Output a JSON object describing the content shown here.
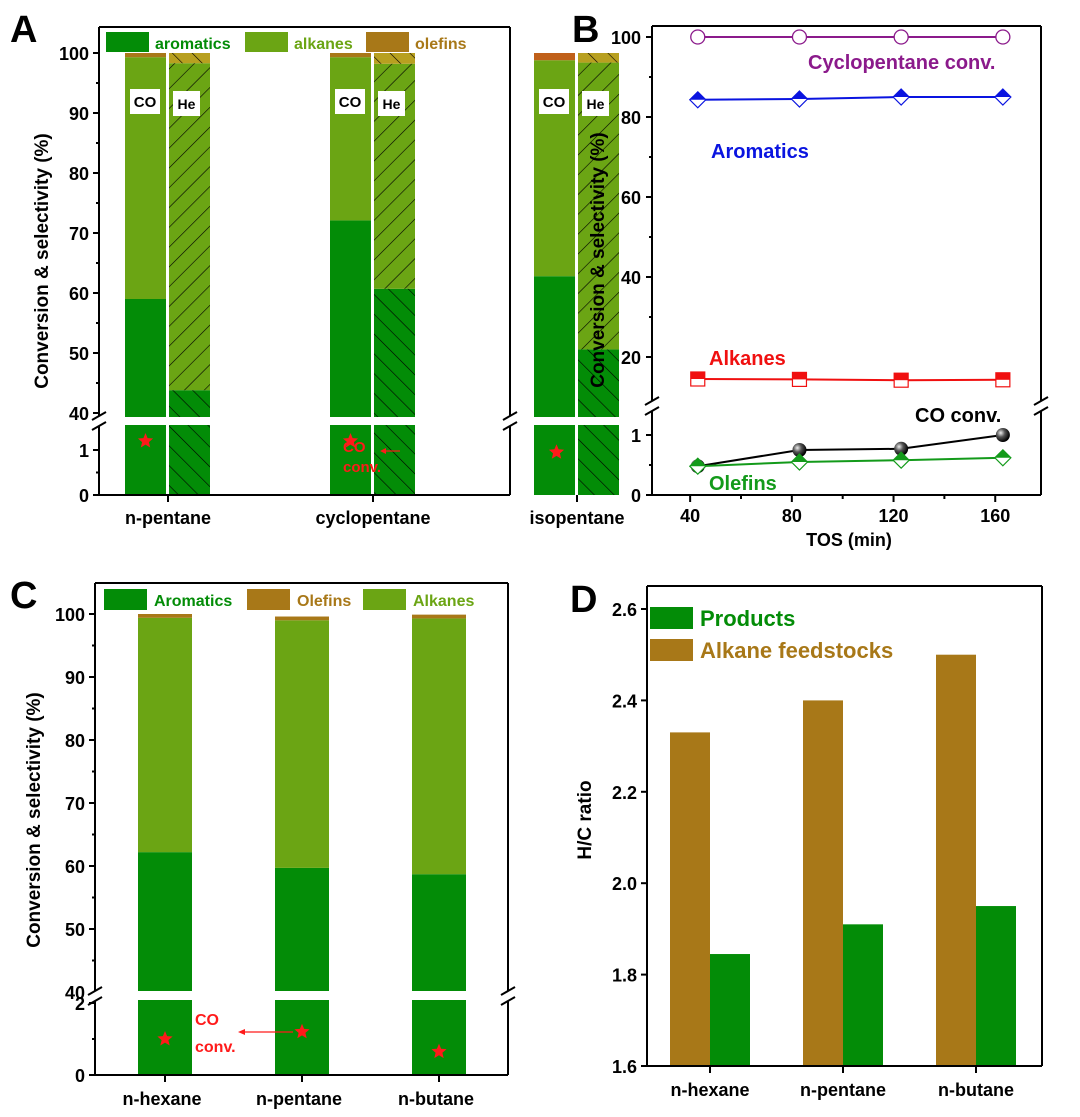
{
  "colors": {
    "aromatics": "#038C07",
    "alkanes": "#6BA514",
    "olefins": "#A87818",
    "olefins_co_isopentane": "#C0601A",
    "olefins_he": "#B8A020",
    "star": "#FF1A1A",
    "purple": "#8B1A8B",
    "blue": "#0A14E0",
    "red": "#F01010",
    "green_line": "#139A1A",
    "black": "#000000"
  },
  "chart_data": [
    {
      "panel": "A",
      "type": "bar",
      "stacked": true,
      "ylabel": "Conversion & selectivity (%)",
      "xlabel": "",
      "axis_break": {
        "lower": [
          0,
          1.5
        ],
        "upper": [
          40,
          103
        ]
      },
      "yticks_upper": [
        "40",
        "50",
        "60",
        "70",
        "80",
        "90",
        "100"
      ],
      "yticks_lower": [
        "0",
        "1"
      ],
      "categories": [
        "n-pentane",
        "cyclopentane",
        "isopentane"
      ],
      "legend": [
        "aromatics",
        "alkanes",
        "olefins"
      ],
      "legend_position": "top",
      "bar_labels": [
        "CO",
        "He"
      ],
      "series": [
        {
          "name": "CO",
          "aromatics": [
            59.0,
            72.1,
            62.8
          ],
          "alkanes": [
            40.3,
            27.2,
            36.0
          ],
          "olefins": [
            0.7,
            0.7,
            1.2
          ]
        },
        {
          "name": "He",
          "aromatics": [
            43.8,
            60.7,
            50.6
          ],
          "alkanes": [
            54.5,
            37.5,
            47.8
          ],
          "olefins": [
            1.7,
            1.8,
            1.6
          ]
        }
      ],
      "co_conversion": [
        1.2,
        1.2,
        0.95
      ],
      "annotation": [
        "CO",
        "conv."
      ]
    },
    {
      "panel": "B",
      "type": "line",
      "xlabel": "TOS (min)",
      "ylabel": "Conversion & selectivity (%)",
      "xlim": [
        25,
        178
      ],
      "xticks": [
        "40",
        "80",
        "120",
        "160"
      ],
      "axis_break": {
        "lower": [
          0,
          1.5
        ],
        "upper": [
          12,
          103
        ]
      },
      "yticks_upper": [
        "20",
        "40",
        "60",
        "80",
        "100"
      ],
      "yticks_lower": [
        "0",
        "1"
      ],
      "x": [
        43,
        83,
        123,
        163
      ],
      "series": [
        {
          "name": "Cyclopentane conv.",
          "values": [
            100,
            100,
            100,
            100
          ],
          "marker": "circle-open"
        },
        {
          "name": "Aromatics",
          "values": [
            84.3,
            84.5,
            85.0,
            85.0
          ],
          "marker": "diamond-half"
        },
        {
          "name": "Alkanes",
          "values": [
            14.5,
            14.4,
            14.2,
            14.3
          ],
          "marker": "square-half"
        },
        {
          "name": "CO conv.",
          "values": [
            0.48,
            0.75,
            0.77,
            1.0
          ],
          "marker": "sphere"
        },
        {
          "name": "Olefins",
          "values": [
            0.48,
            0.55,
            0.58,
            0.62
          ],
          "marker": "diamond-half"
        }
      ]
    },
    {
      "panel": "C",
      "type": "bar",
      "stacked": true,
      "ylabel": "Conversion & selectivity (%)",
      "xlabel": "",
      "axis_break": {
        "lower": [
          0,
          2
        ],
        "upper": [
          40,
          103
        ]
      },
      "yticks_upper": [
        "40",
        "50",
        "60",
        "70",
        "80",
        "90",
        "100"
      ],
      "yticks_lower": [
        "0",
        "2"
      ],
      "categories": [
        "n-hexane",
        "n-pentane",
        "n-butane"
      ],
      "legend": [
        "Aromatics",
        "Olefins",
        "Alkanes"
      ],
      "legend_position": "top",
      "series": [
        {
          "name": "Aromatics",
          "values": [
            62.2,
            59.7,
            58.7
          ]
        },
        {
          "name": "Alkanes",
          "values": [
            37.2,
            39.3,
            40.6
          ]
        },
        {
          "name": "Olefins",
          "values": [
            0.6,
            0.6,
            0.6
          ]
        }
      ],
      "co_conversion": [
        1.0,
        1.2,
        0.65
      ],
      "annotation": [
        "CO",
        "conv."
      ]
    },
    {
      "panel": "D",
      "type": "bar",
      "ylabel": "H/C ratio",
      "xlabel": "",
      "ylim": [
        1.6,
        2.63
      ],
      "yticks": [
        "1.6",
        "1.8",
        "2.0",
        "2.2",
        "2.4",
        "2.6"
      ],
      "categories": [
        "n-hexane",
        "n-pentane",
        "n-butane"
      ],
      "legend_position": "top-left",
      "series": [
        {
          "name": "Alkane feedstocks",
          "values": [
            2.33,
            2.4,
            2.5
          ]
        },
        {
          "name": "Products",
          "values": [
            1.845,
            1.91,
            1.95
          ]
        }
      ],
      "legend": [
        "Products",
        "Alkane feedstocks"
      ]
    }
  ],
  "panel_labels": [
    "A",
    "B",
    "C",
    "D"
  ]
}
